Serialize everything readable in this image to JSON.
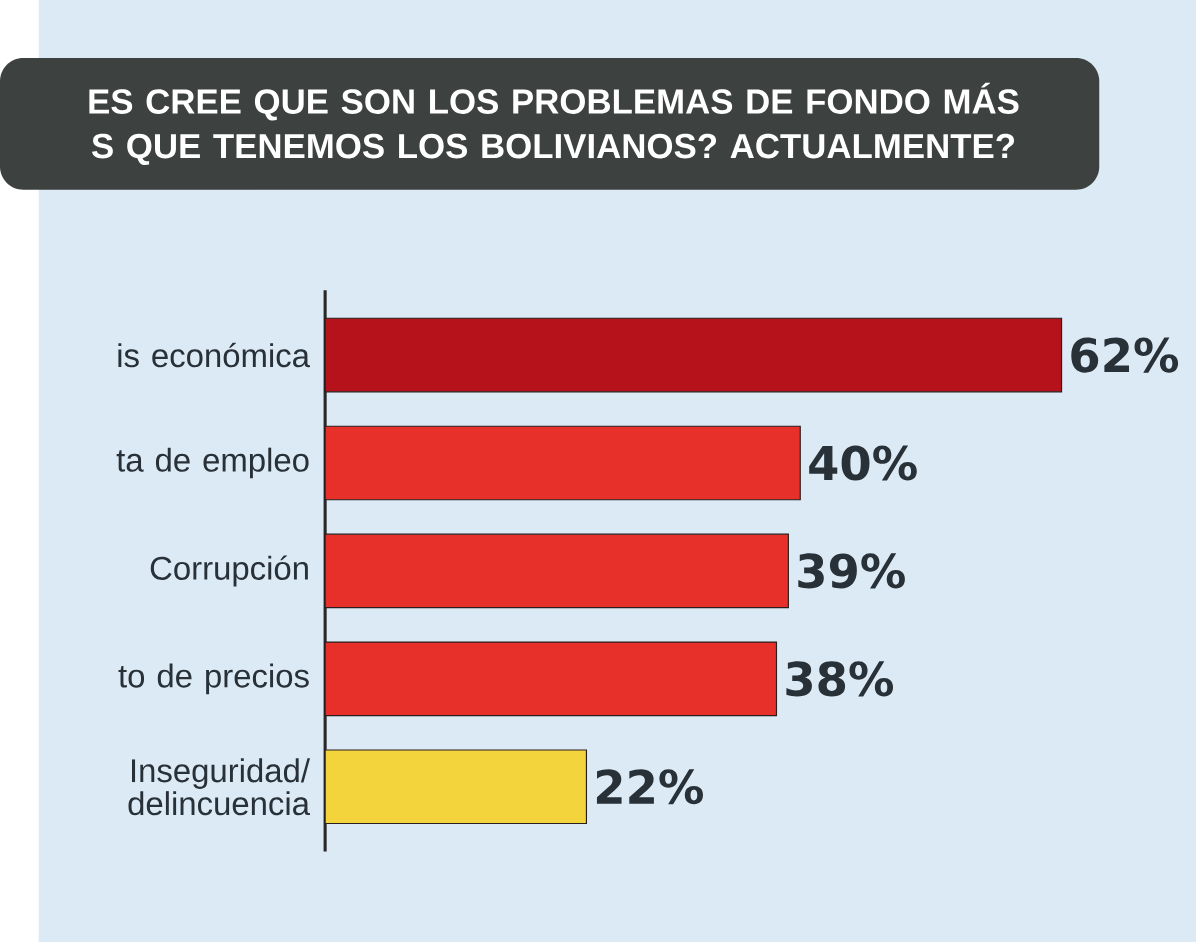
{
  "chart_data": {
    "type": "bar",
    "orientation": "horizontal",
    "title": "ES CREE QUE SON LOS PROBLEMAS DE FONDO MÁS S QUE TENEMOS LOS BOLIVIANOS? ACTUALMENTE?",
    "categories": [
      "is económica",
      "ta de empleo",
      "Corrupción",
      "to de precios",
      "Inseguridad/ delincuencia"
    ],
    "values": [
      62,
      40,
      39,
      38,
      22
    ],
    "value_labels": [
      "62%",
      "40%",
      "39%",
      "38%",
      "22%"
    ],
    "colors": [
      "#b5121b",
      "#e8302a",
      "#e8302a",
      "#e8302a",
      "#f4d43c"
    ]
  }
}
